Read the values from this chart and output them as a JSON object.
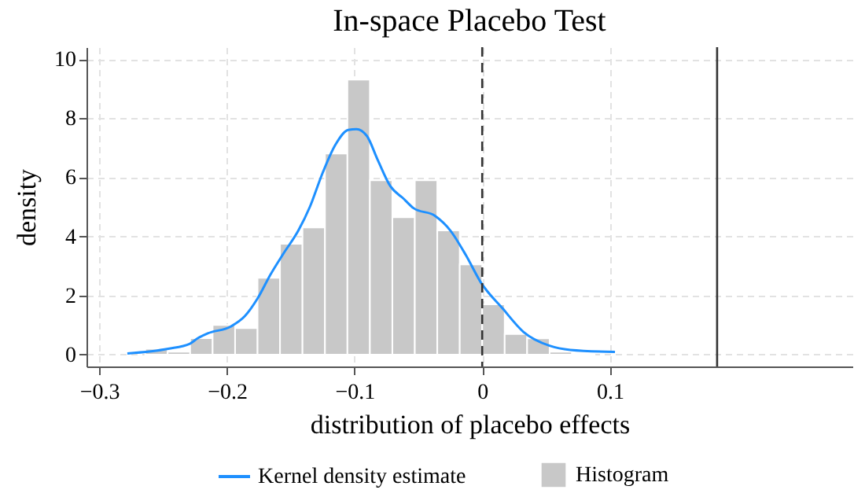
{
  "chart_data": {
    "type": "histogram",
    "title": "In-space Placebo Test",
    "xlabel": "distribution of placebo effects",
    "ylabel": "density",
    "xlim": [
      -0.31,
      0.29
    ],
    "xticks": [
      -0.3,
      -0.2,
      -0.1,
      0,
      0.1
    ],
    "ylim": [
      -0.4,
      10.4
    ],
    "yticks": [
      0,
      2,
      4,
      6,
      8,
      10
    ],
    "grid": true,
    "legend": "bottom",
    "series": [
      {
        "name": "Histogram",
        "color": "#c8c8c8",
        "bins": [
          -0.264,
          -0.2464,
          -0.2288,
          -0.2112,
          -0.1936,
          -0.176,
          -0.1584,
          -0.1408,
          -0.1232,
          -0.1056,
          -0.088,
          -0.0704,
          -0.0528,
          -0.0352,
          -0.0176,
          0,
          0.0176,
          0.0352,
          0.0528,
          0.0704,
          0.088
        ],
        "values": [
          0.2,
          0.1,
          0.56,
          1.0,
          0.9,
          2.6,
          3.75,
          4.3,
          6.8,
          9.3,
          5.9,
          4.65,
          5.9,
          4.2,
          3.05,
          1.7,
          0.7,
          0.55,
          0.1,
          0.05
        ]
      },
      {
        "type": "line",
        "name": "Kernel density estimate",
        "color": "#1e90ff",
        "x": [
          -0.278,
          -0.246,
          -0.229,
          -0.223,
          -0.215,
          -0.197,
          -0.186,
          -0.176,
          -0.166,
          -0.156,
          -0.144,
          -0.135,
          -0.125,
          -0.115,
          -0.105,
          -0.0985,
          -0.0904,
          -0.082,
          -0.072,
          -0.0617,
          -0.0536,
          -0.0372,
          -0.025,
          -0.0126,
          -0.0012,
          0.016,
          0.0323,
          0.0528,
          0.069,
          0.104
        ],
        "values": [
          0.04,
          0.2,
          0.37,
          0.55,
          0.72,
          0.95,
          1.3,
          1.9,
          2.7,
          3.4,
          4.2,
          5.0,
          6.15,
          7.1,
          7.6,
          7.63,
          7.4,
          6.6,
          5.7,
          5.28,
          4.95,
          4.7,
          4.2,
          3.35,
          2.45,
          1.56,
          0.77,
          0.3,
          0.16,
          0.09
        ]
      }
    ],
    "ref_lines": [
      {
        "axis": "x",
        "value": 0,
        "color": "#333333",
        "line_style": "dashed"
      },
      {
        "axis": "x",
        "value": 0.184,
        "color": "#333333",
        "line_style": "solid"
      }
    ]
  }
}
